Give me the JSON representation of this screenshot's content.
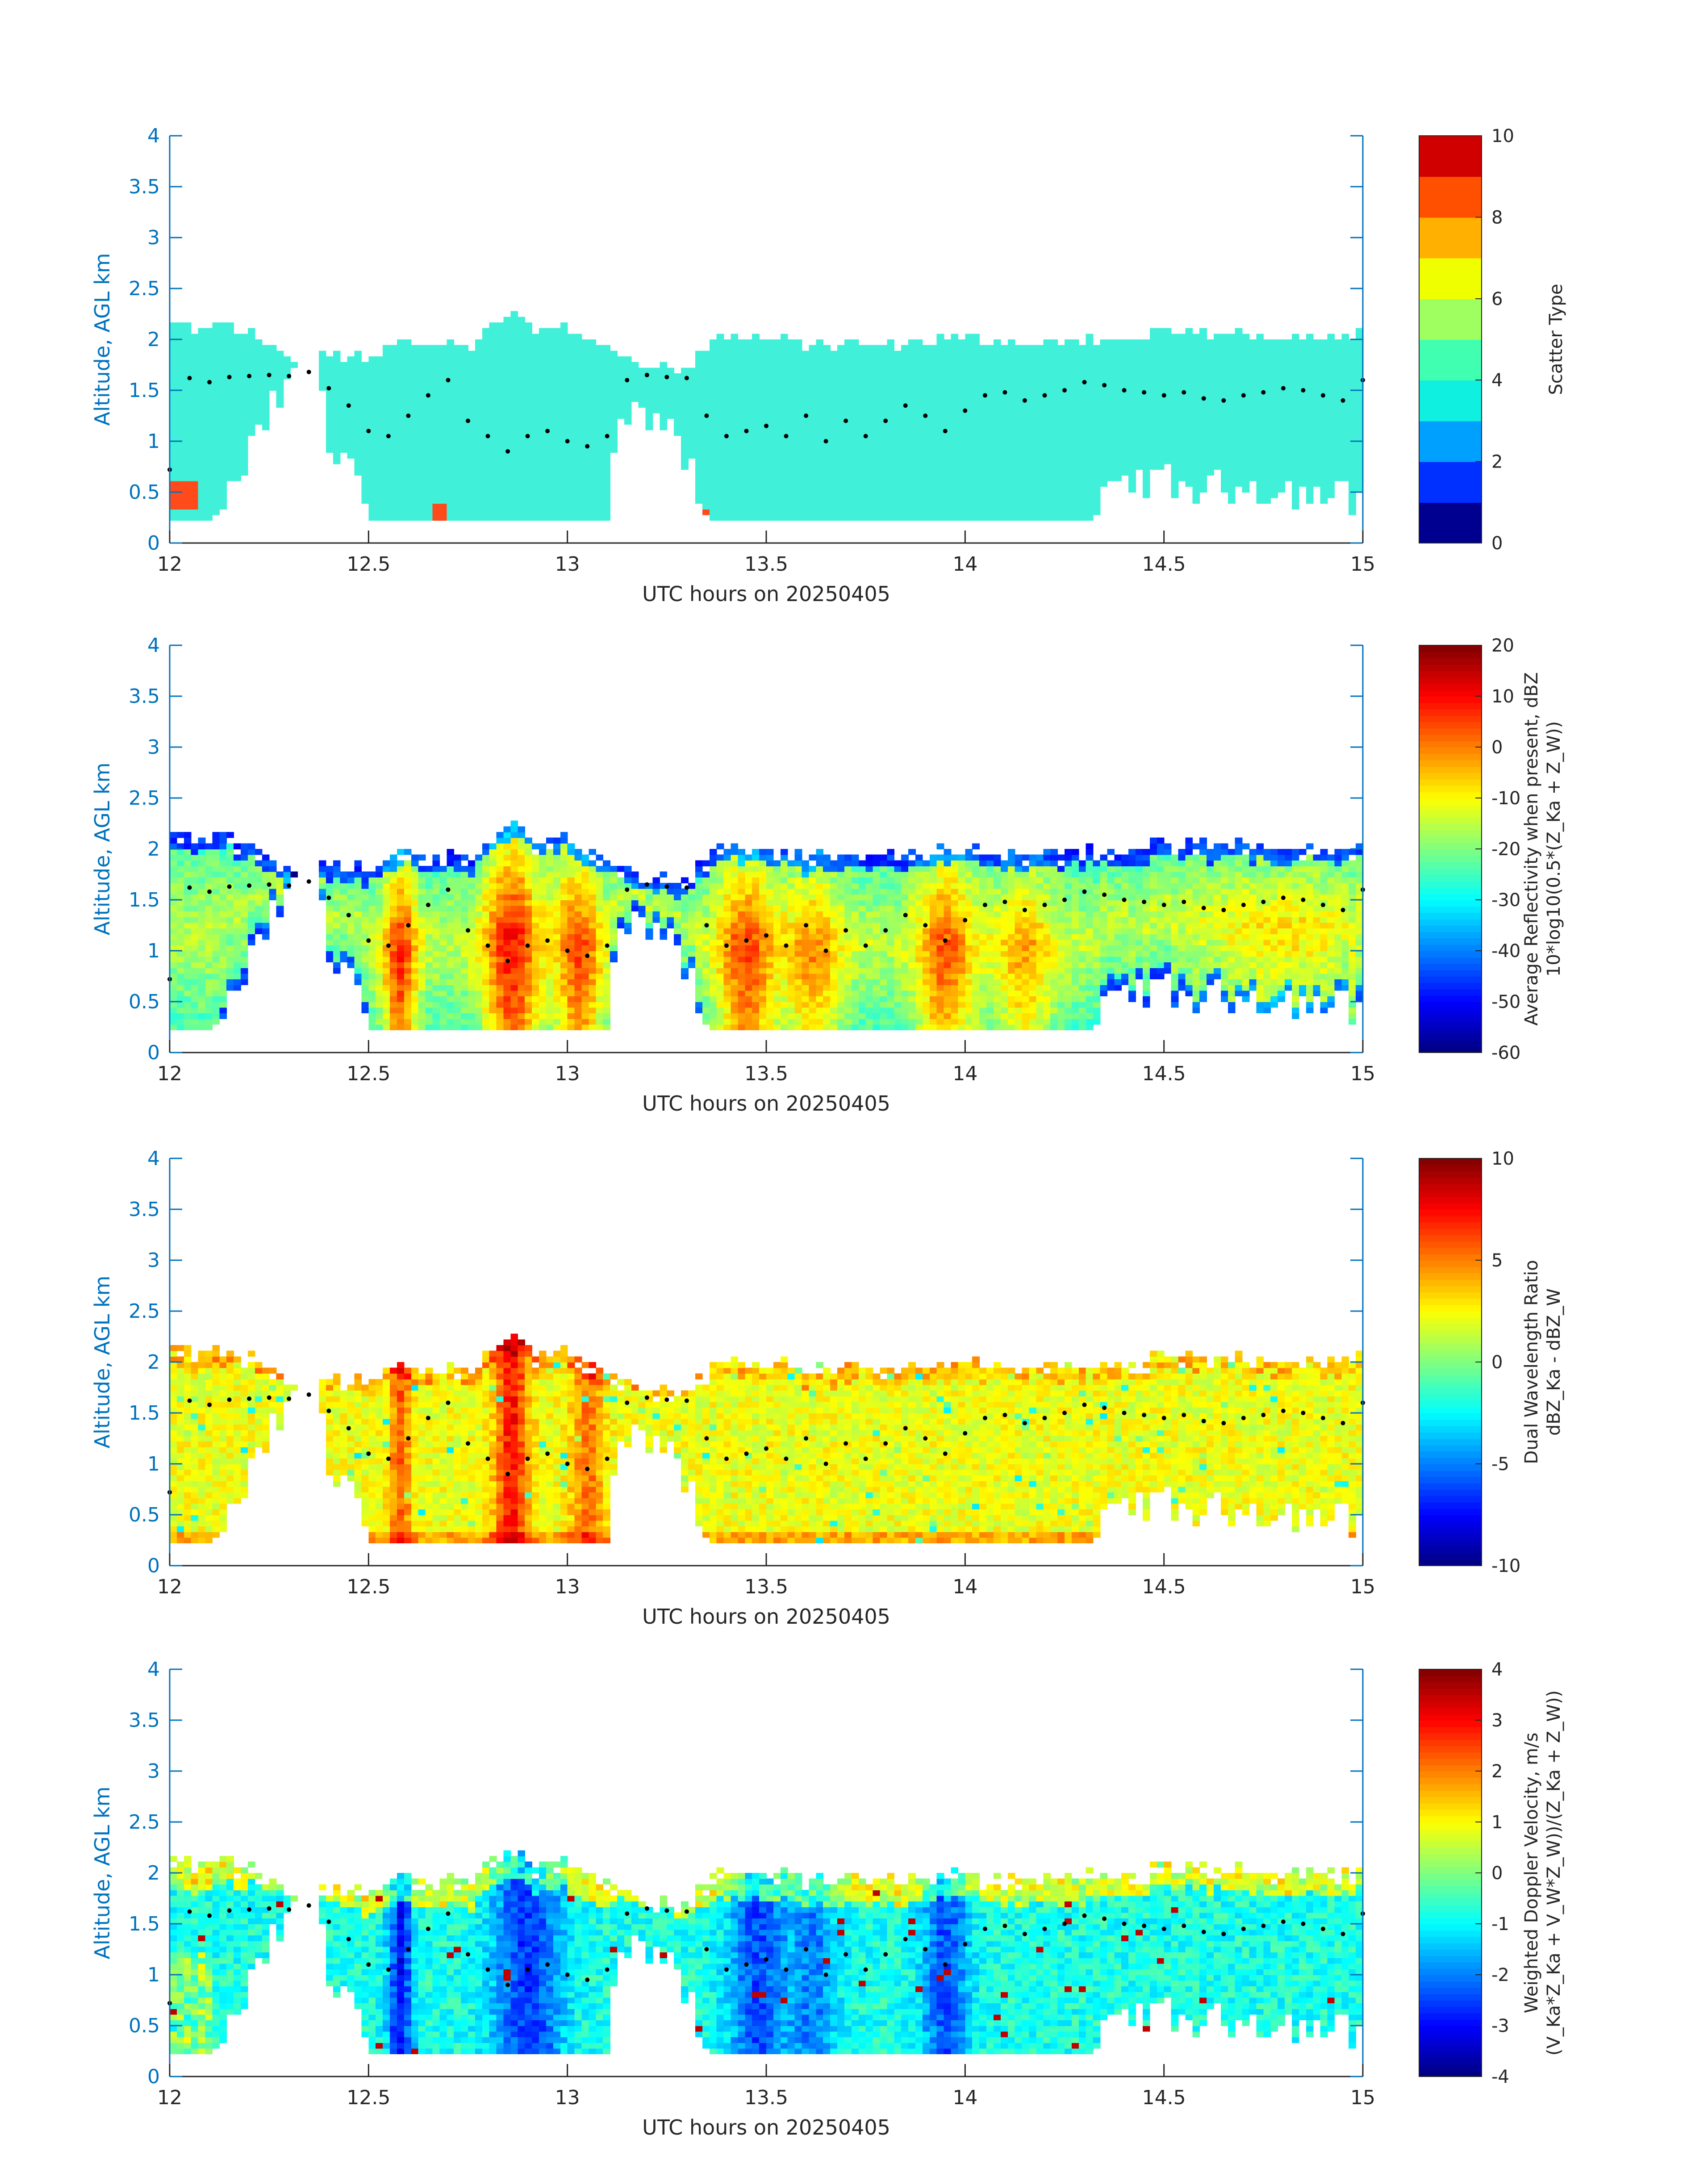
{
  "colors": {
    "axis_y": "#0072bd",
    "axis_x": "#262626",
    "scatter_main": "#40f0d8",
    "scatter_alt": "#ff4a1c",
    "melting_layer_dots": "#000000"
  },
  "chart_data": [
    {
      "type": "heatmap",
      "field": "scatter_type",
      "xlabel": "UTC hours on 20250405",
      "ylabel": "Altitude, AGL km",
      "xlim": [
        12,
        15
      ],
      "ylim": [
        0,
        4
      ],
      "xticks": [
        "12",
        "12.5",
        "13",
        "13.5",
        "14",
        "14.5",
        "15"
      ],
      "yticks": [
        "0",
        "0.5",
        "1",
        "1.5",
        "2",
        "2.5",
        "3",
        "3.5",
        "4"
      ],
      "colorbar": {
        "label_lines": [
          "Scatter Type"
        ],
        "range": [
          0,
          10
        ],
        "ticks": [
          "0",
          "2",
          "4",
          "6",
          "8",
          "10"
        ]
      }
    },
    {
      "type": "heatmap",
      "field": "reflectivity",
      "xlabel": "UTC hours on 20250405",
      "ylabel": "Altitude, AGL km",
      "xlim": [
        12,
        15
      ],
      "ylim": [
        0,
        4
      ],
      "xticks": [
        "12",
        "12.5",
        "13",
        "13.5",
        "14",
        "14.5",
        "15"
      ],
      "yticks": [
        "0",
        "0.5",
        "1",
        "1.5",
        "2",
        "2.5",
        "3",
        "3.5",
        "4"
      ],
      "colorbar": {
        "label_lines": [
          "Average Reflectivity when present, dBZ",
          "10*log10(0.5*(Z_Ka + Z_W))"
        ],
        "range": [
          -60,
          20
        ],
        "ticks": [
          "-60",
          "-50",
          "-40",
          "-30",
          "-20",
          "-10",
          "0",
          "10",
          "20"
        ]
      }
    },
    {
      "type": "heatmap",
      "field": "dwr",
      "xlabel": "UTC hours on 20250405",
      "ylabel": "Altitude, AGL km",
      "xlim": [
        12,
        15
      ],
      "ylim": [
        0,
        4
      ],
      "xticks": [
        "12",
        "12.5",
        "13",
        "13.5",
        "14",
        "14.5",
        "15"
      ],
      "yticks": [
        "0",
        "0.5",
        "1",
        "1.5",
        "2",
        "2.5",
        "3",
        "3.5",
        "4"
      ],
      "colorbar": {
        "label_lines": [
          "Dual Wavelength Ratio",
          "dBZ_Ka - dBZ_W"
        ],
        "range": [
          -10,
          10
        ],
        "ticks": [
          "-10",
          "-5",
          "0",
          "5",
          "10"
        ]
      }
    },
    {
      "type": "heatmap",
      "field": "doppler",
      "xlabel": "UTC hours on 20250405",
      "ylabel": "Altitude, AGL km",
      "xlim": [
        12,
        15
      ],
      "ylim": [
        0,
        4
      ],
      "xticks": [
        "12",
        "12.5",
        "13",
        "13.5",
        "14",
        "14.5",
        "15"
      ],
      "yticks": [
        "0",
        "0.5",
        "1",
        "1.5",
        "2",
        "2.5",
        "3",
        "3.5",
        "4"
      ],
      "colorbar": {
        "label_lines": [
          "Weighted Doppler Velocity, m/s",
          "(V_Ka*Z_Ka + V_W*Z_W))/(Z_Ka + Z_W))"
        ],
        "range": [
          -4,
          4
        ],
        "ticks": [
          "-4",
          "-3",
          "-2",
          "-1",
          "0",
          "1",
          "2",
          "3",
          "4"
        ]
      }
    }
  ],
  "echo_profile": {
    "time_h": [
      12.0,
      12.1,
      12.15,
      12.25,
      12.33,
      12.37,
      12.4,
      12.45,
      12.5,
      12.55,
      12.6,
      12.65,
      12.7,
      12.75,
      12.8,
      12.85,
      12.9,
      12.95,
      13.0,
      13.05,
      13.1,
      13.13,
      13.18,
      13.25,
      13.3,
      13.33,
      13.36,
      13.4,
      13.5,
      13.6,
      13.7,
      13.8,
      13.9,
      14.0,
      14.1,
      14.2,
      14.3,
      14.4,
      14.5,
      14.6,
      14.7,
      14.8,
      14.9,
      15.0
    ],
    "top_km": [
      2.15,
      2.1,
      2.15,
      1.95,
      1.7,
      1.85,
      1.9,
      1.8,
      1.85,
      1.9,
      2.0,
      1.9,
      1.95,
      1.85,
      2.1,
      2.25,
      2.15,
      2.1,
      2.15,
      2.0,
      1.95,
      1.85,
      1.8,
      1.75,
      1.65,
      1.85,
      1.95,
      2.05,
      2.0,
      1.95,
      1.95,
      1.95,
      2.0,
      2.0,
      2.0,
      1.95,
      2.0,
      2.0,
      2.05,
      2.05,
      2.05,
      2.05,
      2.05,
      2.05
    ],
    "base_km": [
      0.2,
      0.2,
      0.4,
      1.2,
      1.6,
      1.55,
      0.9,
      0.85,
      0.2,
      0.2,
      0.2,
      0.2,
      0.2,
      0.25,
      0.2,
      0.2,
      0.2,
      0.2,
      0.2,
      0.2,
      0.2,
      1.0,
      1.25,
      1.05,
      0.7,
      0.4,
      0.2,
      0.2,
      0.2,
      0.2,
      0.2,
      0.2,
      0.2,
      0.2,
      0.2,
      0.2,
      0.2,
      0.5,
      0.55,
      0.45,
      0.5,
      0.45,
      0.4,
      0.35
    ]
  },
  "melting_layer": {
    "time_h": [
      12.0,
      12.05,
      12.1,
      12.15,
      12.2,
      12.25,
      12.3,
      12.35,
      12.4,
      12.45,
      12.5,
      12.55,
      12.6,
      12.65,
      12.7,
      12.75,
      12.8,
      12.85,
      12.9,
      12.95,
      13.0,
      13.05,
      13.1,
      13.15,
      13.2,
      13.25,
      13.3,
      13.35,
      13.4,
      13.45,
      13.5,
      13.55,
      13.6,
      13.65,
      13.7,
      13.75,
      13.8,
      13.85,
      13.9,
      13.95,
      14.0,
      14.05,
      14.1,
      14.15,
      14.2,
      14.25,
      14.3,
      14.35,
      14.4,
      14.45,
      14.5,
      14.55,
      14.6,
      14.65,
      14.7,
      14.75,
      14.8,
      14.85,
      14.9,
      14.95,
      15.0
    ],
    "alt_km": [
      0.72,
      1.62,
      1.58,
      1.63,
      1.64,
      1.65,
      1.64,
      1.68,
      1.52,
      1.35,
      1.1,
      1.05,
      1.25,
      1.45,
      1.6,
      1.2,
      1.05,
      0.9,
      1.05,
      1.1,
      1.0,
      0.95,
      1.05,
      1.6,
      1.65,
      1.63,
      1.62,
      1.25,
      1.05,
      1.1,
      1.15,
      1.05,
      1.25,
      1.0,
      1.2,
      1.05,
      1.2,
      1.35,
      1.25,
      1.1,
      1.3,
      1.45,
      1.48,
      1.4,
      1.45,
      1.5,
      1.58,
      1.55,
      1.5,
      1.48,
      1.45,
      1.48,
      1.42,
      1.4,
      1.45,
      1.48,
      1.52,
      1.5,
      1.45,
      1.4,
      1.6
    ]
  }
}
